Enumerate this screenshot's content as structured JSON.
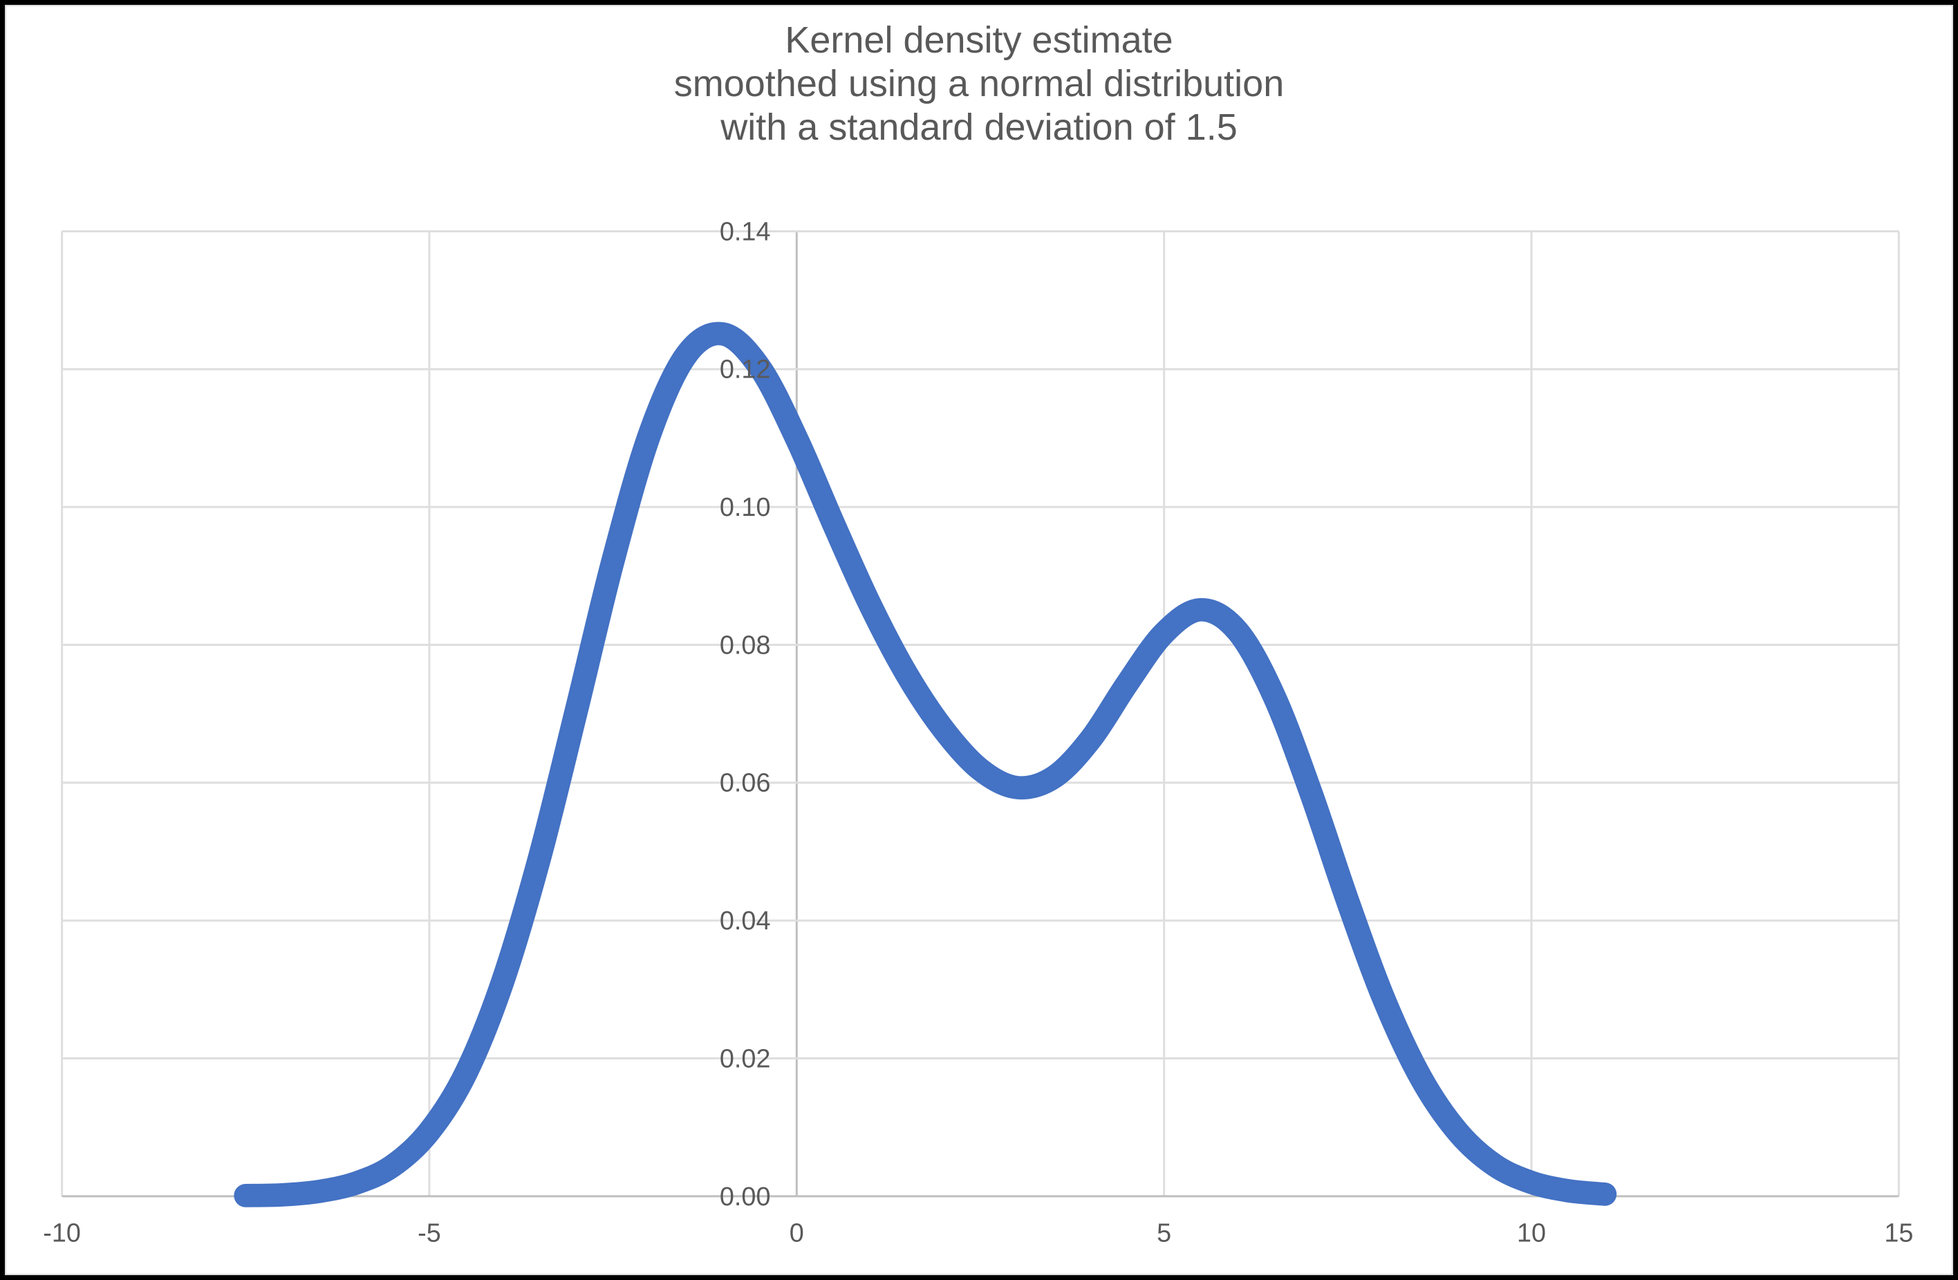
{
  "window": {
    "background_color": "#ffffff",
    "frame_border_color": "#000000",
    "inner_border_color": "#dcdcdc"
  },
  "style": {
    "series_color": "#4472C4",
    "gridline_color": "#dedede",
    "axis_line_color": "#bfbfbf",
    "text_color": "#595959"
  },
  "chart_data": {
    "type": "line",
    "title": {
      "lines": [
        "Kernel density estimate",
        "smoothed using a normal distribution",
        "with a standard deviation of 1.5"
      ]
    },
    "xlabel": "",
    "ylabel": "",
    "xlim": [
      -10,
      15
    ],
    "ylim": [
      0,
      0.14
    ],
    "x_ticks": [
      -10,
      -5,
      0,
      5,
      10,
      15
    ],
    "x_tick_labels": [
      "-10",
      "-5",
      "0",
      "5",
      "10",
      "15"
    ],
    "y_ticks": [
      0,
      0.02,
      0.04,
      0.06,
      0.08,
      0.1,
      0.12,
      0.14
    ],
    "y_tick_labels": [
      "0.00",
      "0.02",
      "0.04",
      "0.06",
      "0.08",
      "0.10",
      "0.12",
      "0.14"
    ],
    "grid": true,
    "legend": false,
    "series": [
      {
        "name": "kernel density estimate",
        "color": "#4472C4",
        "smooth": true,
        "x": [
          -7.5,
          -7.0,
          -6.5,
          -6.0,
          -5.5,
          -5.0,
          -4.5,
          -4.0,
          -3.5,
          -3.0,
          -2.5,
          -2.0,
          -1.5,
          -1.0,
          -0.5,
          0.0,
          0.5,
          1.0,
          1.5,
          2.0,
          2.5,
          3.0,
          3.5,
          4.0,
          4.5,
          5.0,
          5.5,
          6.0,
          6.5,
          7.0,
          7.5,
          8.0,
          8.5,
          9.0,
          9.5,
          10.0,
          10.5,
          11.0
        ],
        "y": [
          0.0001,
          0.0002,
          0.0007,
          0.0019,
          0.0044,
          0.0094,
          0.0179,
          0.0312,
          0.0491,
          0.0704,
          0.0922,
          0.1106,
          0.1221,
          0.1251,
          0.1202,
          0.1099,
          0.0976,
          0.0858,
          0.0757,
          0.0677,
          0.0619,
          0.0593,
          0.0608,
          0.0663,
          0.0744,
          0.0817,
          0.0851,
          0.082,
          0.0725,
          0.0585,
          0.0428,
          0.0284,
          0.0171,
          0.0093,
          0.0045,
          0.002,
          0.0008,
          0.0003
        ]
      }
    ]
  }
}
